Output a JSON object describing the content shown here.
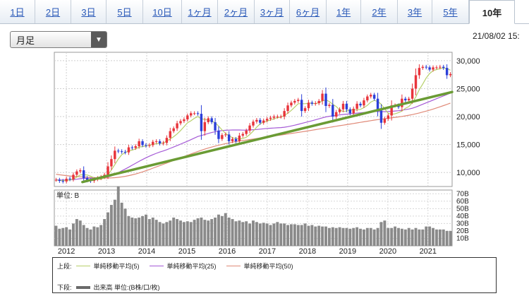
{
  "tabs": [
    {
      "label": "1日",
      "active": false
    },
    {
      "label": "2日",
      "active": false
    },
    {
      "label": "3日",
      "active": false
    },
    {
      "label": "5日",
      "active": false
    },
    {
      "label": "10日",
      "active": false
    },
    {
      "label": "1ヶ月",
      "active": false
    },
    {
      "label": "2ヶ月",
      "active": false
    },
    {
      "label": "3ヶ月",
      "active": false
    },
    {
      "label": "6ヶ月",
      "active": false
    },
    {
      "label": "1年",
      "active": false
    },
    {
      "label": "2年",
      "active": false
    },
    {
      "label": "3年",
      "active": false
    },
    {
      "label": "5年",
      "active": false
    },
    {
      "label": "10年",
      "active": true
    }
  ],
  "select": {
    "value": "月足"
  },
  "timestamp": "21/08/02 15:",
  "chart_data": {
    "type": "candlestick",
    "price_ticks": [
      "30,000",
      "25,000",
      "20,000",
      "15,000",
      "10,000"
    ],
    "price_tick_values": [
      30000,
      25000,
      20000,
      15000,
      10000
    ],
    "price_range": [
      7500,
      31500
    ],
    "volume_unit_label": "単位: B",
    "volume_ticks": [
      "70B",
      "60B",
      "50B",
      "40B",
      "30B",
      "20B",
      "10B"
    ],
    "volume_tick_values": [
      70,
      60,
      50,
      40,
      30,
      20,
      10
    ],
    "volume_range": [
      0,
      75
    ],
    "x_labels": [
      "2012",
      "2013",
      "2014",
      "2015",
      "2016",
      "2017",
      "2018",
      "2019",
      "2020",
      "2021"
    ],
    "start_year": 2011.7,
    "end_year": 2021.6,
    "close": [
      8700,
      8500,
      8400,
      8900,
      8800,
      9600,
      10200,
      10400,
      9000,
      8600,
      8500,
      8800,
      9000,
      9200,
      9600,
      11100,
      12400,
      13900,
      13800,
      13700,
      13600,
      14500,
      14400,
      14700,
      15600,
      14900,
      14800,
      14900,
      15500,
      15600,
      15200,
      15300,
      16200,
      17400,
      17900,
      18800,
      19200,
      19500,
      20200,
      20600,
      20600,
      20500,
      17400,
      19000,
      19700,
      19000,
      17500,
      16000,
      16700,
      16800,
      15600,
      16000,
      15600,
      16600,
      16900,
      17500,
      18400,
      19100,
      19400,
      18900,
      19300,
      19600,
      19800,
      20000,
      20000,
      20000,
      21000,
      22000,
      22500,
      22800,
      23000,
      21000,
      21500,
      22500,
      22300,
      22400,
      22800,
      24100,
      21900,
      22100,
      20000,
      20800,
      21300,
      22300,
      21300,
      20600,
      21400,
      22300,
      22000,
      22900,
      23600,
      23900,
      23200,
      21100,
      18900,
      19600,
      20200,
      22000,
      22000,
      21700,
      23200,
      22900,
      23200,
      25000,
      27400,
      28700,
      28900,
      28800,
      28400,
      28800,
      28800,
      28900,
      28700,
      27400,
      27600
    ],
    "volume": [
      27,
      23,
      24,
      25,
      22,
      30,
      36,
      34,
      28,
      24,
      22,
      26,
      25,
      28,
      36,
      45,
      55,
      62,
      80,
      58,
      50,
      40,
      38,
      37,
      38,
      40,
      42,
      36,
      38,
      35,
      32,
      30,
      32,
      34,
      38,
      36,
      34,
      32,
      33,
      32,
      35,
      37,
      38,
      35,
      34,
      36,
      38,
      42,
      40,
      44,
      38,
      36,
      33,
      34,
      32,
      33,
      30,
      34,
      32,
      30,
      31,
      30,
      28,
      30,
      32,
      30,
      30,
      28,
      29,
      29,
      28,
      28,
      30,
      27,
      28,
      26,
      27,
      26,
      26,
      24,
      25,
      24,
      25,
      24,
      24,
      23,
      24,
      25,
      23,
      22,
      24,
      24,
      22,
      24,
      32,
      34,
      24,
      24,
      26,
      24,
      23,
      22,
      24,
      22,
      24,
      22,
      22,
      26,
      26,
      24,
      22,
      22,
      22,
      20,
      20
    ],
    "ma5": [
      8650,
      8600,
      8560,
      8590,
      8660,
      8840,
      9180,
      9580,
      9600,
      9560,
      9340,
      9060,
      8780,
      8820,
      9020,
      9540,
      10460,
      11420,
      12400,
      13180,
      13560,
      13900,
      14000,
      14220,
      14560,
      14620,
      14780,
      14880,
      15040,
      15140,
      15200,
      15300,
      15640,
      16000,
      16400,
      16900,
      17500,
      18180,
      18900,
      19250,
      19700,
      20000,
      19600,
      19500,
      19400,
      19200,
      18900,
      18300,
      17600,
      17000,
      16600,
      16200,
      16100,
      16000,
      16100,
      16300,
      16800,
      17400,
      18100,
      18700,
      19000,
      19200,
      19400,
      19600,
      19800,
      19900,
      20200,
      20600,
      21100,
      21700,
      22300,
      22300,
      22300,
      22400,
      22400,
      22300,
      22500,
      22800,
      23000,
      22700,
      22200,
      21800,
      21200,
      20900,
      21000,
      21200,
      21200,
      21200,
      21300,
      21600,
      22000,
      22600,
      22900,
      22700,
      22200,
      21400,
      20600,
      20400,
      20500,
      20700,
      21000,
      21500,
      21800,
      22500,
      23500,
      24800,
      25800,
      26900,
      27700,
      28200,
      28400,
      28600,
      28700,
      28600,
      28300
    ],
    "ma25": [
      8700,
      8680,
      8660,
      8660,
      8670,
      8720,
      8800,
      8900,
      8950,
      8980,
      9000,
      9020,
      9050,
      9080,
      9120,
      9200,
      9380,
      9650,
      9980,
      10300,
      10620,
      10950,
      11300,
      11650,
      12000,
      12320,
      12640,
      12920,
      13200,
      13440,
      13660,
      13860,
      14080,
      14320,
      14560,
      14820,
      15080,
      15340,
      15600,
      15880,
      16160,
      16440,
      16620,
      16800,
      16980,
      17150,
      17300,
      17420,
      17500,
      17560,
      17580,
      17600,
      17600,
      17600,
      17580,
      17580,
      17600,
      17650,
      17700,
      17760,
      17820,
      17880,
      17920,
      17960,
      18000,
      18040,
      18100,
      18200,
      18320,
      18460,
      18620,
      18780,
      18940,
      19100,
      19260,
      19420,
      19600,
      19780,
      19940,
      20060,
      20140,
      20220,
      20300,
      20380,
      20440,
      20500,
      20560,
      20620,
      20680,
      20740,
      20800,
      20860,
      20900,
      20920,
      20900,
      20880,
      20900,
      20940,
      21000,
      21060,
      21140,
      21240,
      21360,
      21500,
      21700,
      21950,
      22200,
      22450,
      22700,
      22950,
      23200,
      23450,
      23700,
      23950,
      24200
    ],
    "ma50": [
      9700,
      9600,
      9520,
      9440,
      9380,
      9320,
      9280,
      9240,
      9200,
      9160,
      9120,
      9090,
      9060,
      9040,
      9020,
      9020,
      9040,
      9080,
      9140,
      9220,
      9320,
      9440,
      9580,
      9740,
      9920,
      10120,
      10330,
      10550,
      10780,
      11010,
      11240,
      11470,
      11700,
      11930,
      12160,
      12390,
      12620,
      12850,
      13080,
      13310,
      13540,
      13770,
      13980,
      14180,
      14370,
      14550,
      14720,
      14880,
      15030,
      15170,
      15300,
      15420,
      15530,
      15630,
      15720,
      15810,
      15900,
      15990,
      16080,
      16170,
      16260,
      16350,
      16440,
      16530,
      16620,
      16710,
      16800,
      16890,
      16980,
      17070,
      17170,
      17270,
      17370,
      17470,
      17570,
      17670,
      17770,
      17870,
      17970,
      18070,
      18170,
      18270,
      18370,
      18470,
      18570,
      18670,
      18770,
      18870,
      18970,
      19070,
      19170,
      19270,
      19370,
      19460,
      19540,
      19620,
      19700,
      19780,
      19860,
      19940,
      20030,
      20130,
      20240,
      20360,
      20500,
      20650,
      20810,
      20980,
      21160,
      21350,
      21550,
      21750,
      21960,
      22180,
      22400
    ],
    "trendline": {
      "from": {
        "year": 2012.4,
        "price": 8300
      },
      "to": {
        "year": 2021.6,
        "price": 24400
      }
    },
    "legend_upper_label": "上段:",
    "legend_lower_label": "下段:",
    "series": [
      {
        "name": "単純移動平均(5)",
        "color": "#b7d06a"
      },
      {
        "name": "単純移動平均(25)",
        "color": "#a55ad6"
      },
      {
        "name": "単純移動平均(50)",
        "color": "#e08a78"
      }
    ],
    "volume_series": {
      "name": "出来高 単位:(B株/口/枚)",
      "color": "#6a6a6a"
    },
    "colors": {
      "up": "#e8343b",
      "down": "#2b3fd9",
      "trend": "#6a9b34",
      "volume": "#8a8a8a"
    }
  }
}
